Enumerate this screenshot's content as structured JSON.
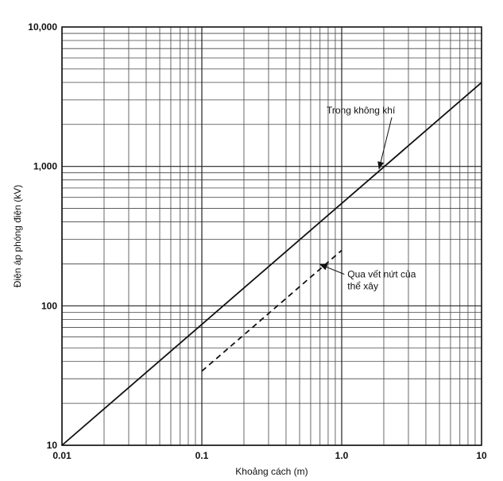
{
  "chart_data": {
    "type": "line",
    "title": "",
    "xlabel": "Khoảng cách (m)",
    "ylabel": "Điện áp phóng điện (kV)",
    "x_scale": "log",
    "y_scale": "log",
    "xlim": [
      0.01,
      10
    ],
    "ylim": [
      10,
      10000
    ],
    "grid": true,
    "x_ticks": [
      {
        "value": 0.01,
        "label": "0.01"
      },
      {
        "value": 0.1,
        "label": "0.1"
      },
      {
        "value": 1,
        "label": "1.0"
      },
      {
        "value": 10,
        "label": "10"
      }
    ],
    "y_ticks": [
      {
        "value": 10,
        "label": "10"
      },
      {
        "value": 100,
        "label": "100"
      },
      {
        "value": 1000,
        "label": "1,000"
      },
      {
        "value": 10000,
        "label": "10,000"
      }
    ],
    "series": [
      {
        "name": "Trong không khí",
        "style": "solid",
        "color": "#111111",
        "x": [
          0.01,
          10
        ],
        "y": [
          10,
          4000
        ]
      },
      {
        "name": "Qua vết nứt của thể xây",
        "style": "dashed",
        "color": "#111111",
        "x": [
          0.1,
          1
        ],
        "y": [
          34,
          250
        ]
      }
    ],
    "annotations": [
      {
        "lines": [
          "Trong không khí"
        ],
        "target": {
          "x": 1.85,
          "y": 960
        },
        "text_at": {
          "x": 0.78,
          "y": 2400
        }
      },
      {
        "lines": [
          "Qua vết nứt của",
          "thể xây"
        ],
        "target": {
          "x": 0.7,
          "y": 198
        },
        "text_at": {
          "x": 1.1,
          "y": 160
        }
      }
    ]
  }
}
